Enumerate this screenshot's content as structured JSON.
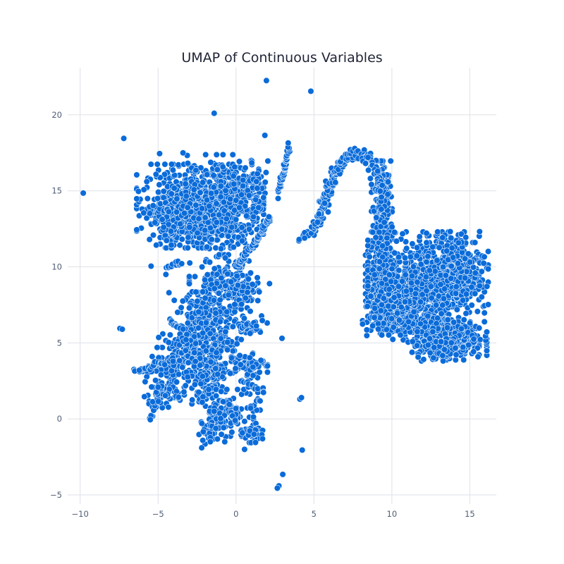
{
  "chart_data": {
    "type": "scatter",
    "title": "UMAP of Continuous Variables",
    "xlabel": "",
    "ylabel": "",
    "xlim": [
      -10.8,
      16.7
    ],
    "ylim": [
      -5.6,
      23.1
    ],
    "xticks": [
      -10,
      -5,
      0,
      5,
      10,
      15
    ],
    "yticks": [
      -5,
      0,
      5,
      10,
      15,
      20
    ],
    "xtick_labels": [
      "−10",
      "−5",
      "0",
      "5",
      "10",
      "15"
    ],
    "ytick_labels": [
      "−5",
      "0",
      "5",
      "10",
      "15",
      "20"
    ],
    "grid": true,
    "legend": "none",
    "point_color": "#0a6bd9",
    "point_edge_color": "#ffffff",
    "series": [
      {
        "points": [
          [
            -9.8,
            14.85
          ],
          [
            -7.2,
            18.45
          ],
          [
            -4.9,
            17.45
          ],
          [
            -3.4,
            17.5
          ],
          [
            -1.4,
            20.1
          ],
          [
            1.95,
            22.25
          ],
          [
            4.8,
            21.55
          ],
          [
            1.85,
            18.65
          ],
          [
            3.35,
            18.15
          ],
          [
            -5.45,
            10.05
          ],
          [
            -4.3,
            8.3
          ],
          [
            -3.0,
            7.3
          ],
          [
            -4.5,
            9.5
          ],
          [
            2.15,
            8.9
          ],
          [
            2.95,
            5.3
          ],
          [
            -7.45,
            5.95
          ],
          [
            -7.3,
            5.9
          ],
          [
            4.25,
            -2.05
          ],
          [
            0.55,
            -2.0
          ],
          [
            3.0,
            -3.65
          ],
          [
            2.75,
            -4.4
          ],
          [
            2.65,
            -4.55
          ],
          [
            4.1,
            1.3
          ],
          [
            4.2,
            1.4
          ],
          [
            4.05,
            11.8
          ],
          [
            4.4,
            11.9
          ],
          [
            2.7,
            14.5
          ],
          [
            -6.5,
            3.15
          ],
          [
            -6.2,
            3.2
          ],
          [
            -5.5,
            -0.05
          ],
          [
            -2.2,
            -1.9
          ],
          [
            -1.65,
            -1.5
          ],
          [
            1.7,
            -1.3
          ],
          [
            1.25,
            -1.55
          ]
        ],
        "clusters": [
          {
            "cx": -2.3,
            "cy": 14.0,
            "sx": 1.85,
            "sy": 1.25,
            "n": 700
          },
          {
            "cx": -3.9,
            "cy": 13.3,
            "sx": 0.75,
            "sy": 0.85,
            "n": 150
          },
          {
            "cx": -0.6,
            "cy": 15.4,
            "sx": 1.2,
            "sy": 0.9,
            "n": 170
          },
          {
            "cx": 1.1,
            "cy": 14.2,
            "sx": 0.5,
            "sy": 1.2,
            "n": 70
          },
          {
            "cx": -1.0,
            "cy": 12.3,
            "sx": 0.9,
            "sy": 0.5,
            "n": 90
          },
          {
            "cx": -0.8,
            "cy": 8.6,
            "sx": 1.0,
            "sy": 1.0,
            "n": 180
          },
          {
            "cx": 0.5,
            "cy": 8.3,
            "sx": 0.45,
            "sy": 0.7,
            "n": 50
          },
          {
            "cx": -2.2,
            "cy": 6.6,
            "sx": 0.8,
            "sy": 0.8,
            "n": 130
          },
          {
            "cx": -1.4,
            "cy": 4.4,
            "sx": 0.9,
            "sy": 1.2,
            "n": 180
          },
          {
            "cx": -3.2,
            "cy": 4.6,
            "sx": 0.8,
            "sy": 0.6,
            "n": 110
          },
          {
            "cx": -2.0,
            "cy": 2.6,
            "sx": 0.6,
            "sy": 0.8,
            "n": 90
          },
          {
            "cx": 0.7,
            "cy": 3.6,
            "sx": 0.6,
            "sy": 0.45,
            "n": 60
          },
          {
            "cx": -4.6,
            "cy": 2.5,
            "sx": 0.7,
            "sy": 1.0,
            "n": 110
          },
          {
            "cx": -0.1,
            "cy": 0.4,
            "sx": 0.75,
            "sy": 0.7,
            "n": 110
          },
          {
            "cx": -1.6,
            "cy": -0.6,
            "sx": 0.45,
            "sy": 0.5,
            "n": 50
          },
          {
            "cx": 1.1,
            "cy": -0.9,
            "sx": 0.35,
            "sy": 0.3,
            "n": 30
          },
          {
            "cx": 0.9,
            "cy": 6.0,
            "sx": 0.5,
            "sy": 0.35,
            "n": 30
          },
          {
            "cx": 9.35,
            "cy": 13.0,
            "sx": 0.3,
            "sy": 1.8,
            "n": 300
          },
          {
            "cx": 9.3,
            "cy": 9.2,
            "sx": 0.45,
            "sy": 1.4,
            "n": 260
          },
          {
            "cx": 12.2,
            "cy": 9.0,
            "sx": 1.7,
            "sy": 1.5,
            "n": 650
          },
          {
            "cx": 14.2,
            "cy": 9.9,
            "sx": 0.9,
            "sy": 1.1,
            "n": 260
          },
          {
            "cx": 11.2,
            "cy": 6.3,
            "sx": 1.4,
            "sy": 0.5,
            "n": 260
          },
          {
            "cx": 14.0,
            "cy": 5.2,
            "sx": 0.95,
            "sy": 0.6,
            "n": 280
          },
          {
            "cx": 12.8,
            "cy": 4.8,
            "sx": 0.8,
            "sy": 0.45,
            "n": 120
          },
          {
            "cx": 10.3,
            "cy": 7.5,
            "sx": 0.7,
            "sy": 0.9,
            "n": 140
          }
        ],
        "curves": [
          {
            "path": [
              [
                5.6,
                14.0
              ],
              [
                6.2,
                15.9
              ],
              [
                7.1,
                17.2
              ],
              [
                7.9,
                17.6
              ],
              [
                8.6,
                16.9
              ],
              [
                9.1,
                16.2
              ],
              [
                9.2,
                15.0
              ]
            ],
            "n": 170,
            "jitter": 0.18
          },
          {
            "path": [
              [
                4.2,
                11.9
              ],
              [
                4.9,
                12.4
              ],
              [
                5.2,
                13.0
              ],
              [
                5.6,
                14.0
              ]
            ],
            "n": 40,
            "jitter": 0.12
          },
          {
            "path": [
              [
                0.0,
                10.0
              ],
              [
                0.8,
                11.0
              ],
              [
                1.5,
                12.0
              ],
              [
                2.2,
                13.3
              ]
            ],
            "n": 70,
            "jitter": 0.07
          },
          {
            "path": [
              [
                2.7,
                15.0
              ],
              [
                3.1,
                16.3
              ],
              [
                3.35,
                17.9
              ]
            ],
            "n": 45,
            "jitter": 0.05
          },
          {
            "path": [
              [
                -5.4,
                0.1
              ],
              [
                -5.2,
                1.2
              ],
              [
                -4.8,
                2.0
              ]
            ],
            "n": 25,
            "jitter": 0.15
          },
          {
            "path": [
              [
                -4.4,
                10.0
              ],
              [
                -3.5,
                10.3
              ]
            ],
            "n": 14,
            "jitter": 0.1
          },
          {
            "path": [
              [
                -4.3,
                6.4
              ],
              [
                -3.4,
                5.9
              ]
            ],
            "n": 14,
            "jitter": 0.08
          },
          {
            "path": [
              [
                -6.5,
                3.1
              ],
              [
                -5.0,
                3.6
              ],
              [
                -4.0,
                4.0
              ]
            ],
            "n": 25,
            "jitter": 0.12
          },
          {
            "path": [
              [
                0.4,
                2.5
              ],
              [
                1.8,
                1.7
              ]
            ],
            "n": 18,
            "jitter": 0.1
          },
          {
            "path": [
              [
                0.2,
                6.0
              ],
              [
                1.2,
                6.2
              ]
            ],
            "n": 10,
            "jitter": 0.08
          }
        ]
      }
    ]
  }
}
